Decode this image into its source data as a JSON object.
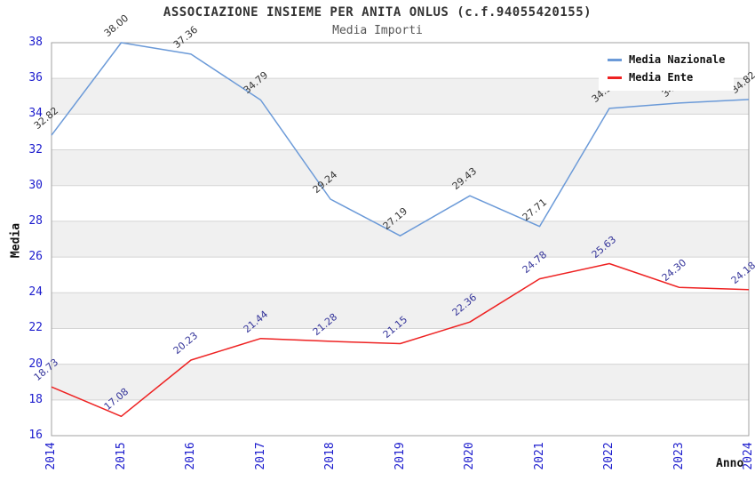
{
  "chart_data": {
    "type": "line",
    "title": "ASSOCIAZIONE INSIEME PER ANITA ONLUS (c.f.94055420155)",
    "subtitle": "Media Importi",
    "xlabel": "Anno",
    "ylabel": "Media",
    "x": [
      2014,
      2015,
      2016,
      2017,
      2018,
      2019,
      2020,
      2021,
      2022,
      2023,
      2024
    ],
    "series": [
      {
        "name": "Media Nazionale",
        "color": "#6b9ad8",
        "label_color": "#333333",
        "values": [
          32.82,
          38.0,
          37.36,
          34.79,
          29.24,
          27.19,
          29.43,
          27.71,
          34.32,
          34.62,
          34.82
        ]
      },
      {
        "name": "Media Ente",
        "color": "#ee2222",
        "label_color": "#333399",
        "values": [
          18.73,
          17.08,
          20.23,
          21.44,
          21.28,
          21.15,
          22.36,
          24.78,
          25.63,
          24.3,
          24.18
        ]
      }
    ],
    "ylim": [
      16,
      38
    ],
    "ytick_step": 2,
    "grid": true,
    "legend_position": "top-right",
    "styles": {
      "band_color": "#f0f0f0",
      "grid_color": "#d4d4d4",
      "plot_border_color": "#a0a0a0",
      "tick_label_color": "#1c1ccd"
    }
  }
}
